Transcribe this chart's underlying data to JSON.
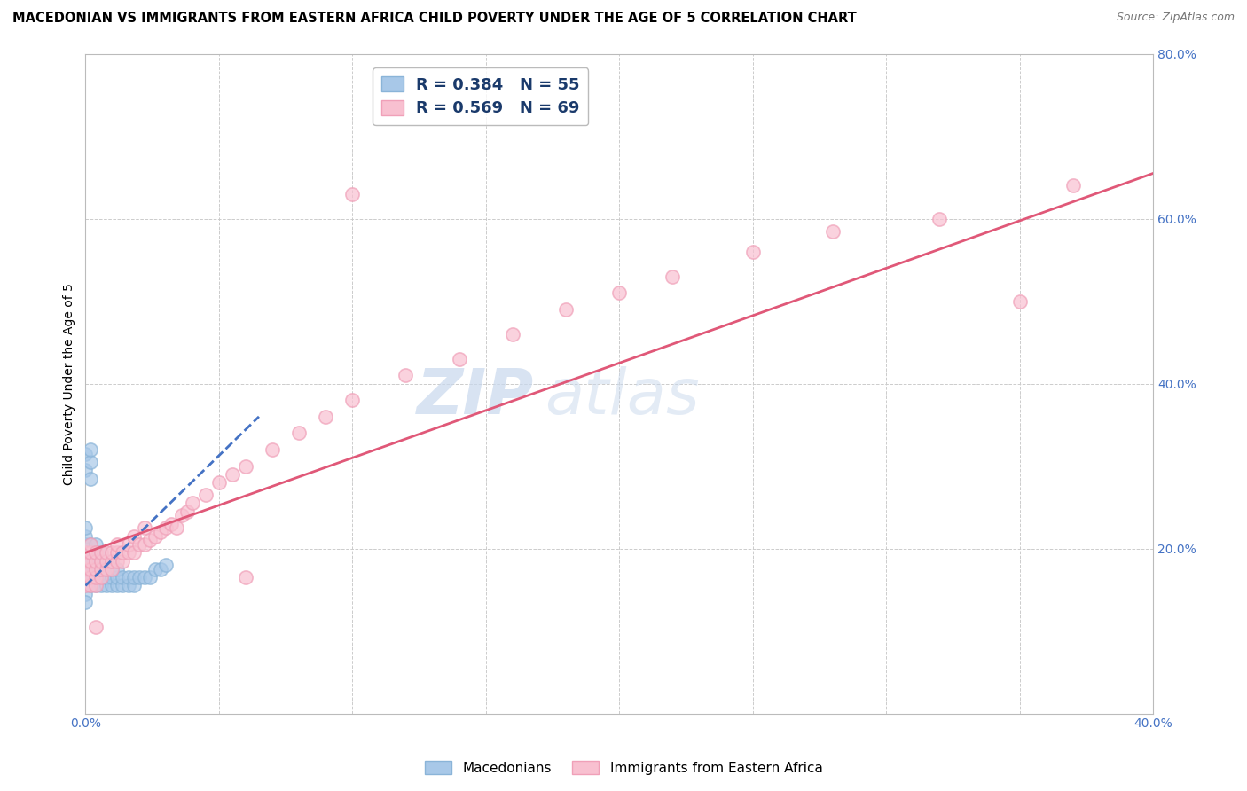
{
  "title": "MACEDONIAN VS IMMIGRANTS FROM EASTERN AFRICA CHILD POVERTY UNDER THE AGE OF 5 CORRELATION CHART",
  "source": "Source: ZipAtlas.com",
  "ylabel": "Child Poverty Under the Age of 5",
  "xlim": [
    0.0,
    0.4
  ],
  "ylim": [
    0.0,
    0.8
  ],
  "xticks": [
    0.0,
    0.05,
    0.1,
    0.15,
    0.2,
    0.25,
    0.3,
    0.35,
    0.4
  ],
  "yticks": [
    0.0,
    0.2,
    0.4,
    0.6,
    0.8
  ],
  "macedonian_color": "#8ab4d8",
  "macedonian_fill": "#a8c8e8",
  "eastern_africa_color": "#f0a0b8",
  "eastern_africa_fill": "#f8c0d0",
  "macedonian_line_color": "#4472c4",
  "eastern_africa_line_color": "#e05878",
  "macedonian_R": 0.384,
  "macedonian_N": 55,
  "eastern_africa_R": 0.569,
  "eastern_africa_N": 69,
  "watermark_zip": "ZIP",
  "watermark_atlas": "atlas",
  "legend_macedonians": "Macedonians",
  "legend_eastern_africa": "Immigrants from Eastern Africa",
  "background_color": "#ffffff",
  "grid_color": "#cccccc",
  "macedonian_points": [
    [
      0.0,
      0.155
    ],
    [
      0.0,
      0.165
    ],
    [
      0.0,
      0.175
    ],
    [
      0.0,
      0.185
    ],
    [
      0.0,
      0.195
    ],
    [
      0.0,
      0.205
    ],
    [
      0.0,
      0.215
    ],
    [
      0.0,
      0.225
    ],
    [
      0.0,
      0.145
    ],
    [
      0.0,
      0.135
    ],
    [
      0.002,
      0.155
    ],
    [
      0.002,
      0.165
    ],
    [
      0.002,
      0.175
    ],
    [
      0.002,
      0.185
    ],
    [
      0.002,
      0.195
    ],
    [
      0.002,
      0.205
    ],
    [
      0.004,
      0.155
    ],
    [
      0.004,
      0.165
    ],
    [
      0.004,
      0.175
    ],
    [
      0.004,
      0.185
    ],
    [
      0.004,
      0.195
    ],
    [
      0.004,
      0.205
    ],
    [
      0.006,
      0.155
    ],
    [
      0.006,
      0.165
    ],
    [
      0.006,
      0.175
    ],
    [
      0.006,
      0.185
    ],
    [
      0.006,
      0.195
    ],
    [
      0.008,
      0.155
    ],
    [
      0.008,
      0.165
    ],
    [
      0.008,
      0.175
    ],
    [
      0.008,
      0.185
    ],
    [
      0.01,
      0.155
    ],
    [
      0.01,
      0.165
    ],
    [
      0.01,
      0.175
    ],
    [
      0.01,
      0.185
    ],
    [
      0.012,
      0.155
    ],
    [
      0.012,
      0.165
    ],
    [
      0.012,
      0.175
    ],
    [
      0.014,
      0.155
    ],
    [
      0.014,
      0.165
    ],
    [
      0.016,
      0.155
    ],
    [
      0.016,
      0.165
    ],
    [
      0.018,
      0.155
    ],
    [
      0.018,
      0.165
    ],
    [
      0.02,
      0.165
    ],
    [
      0.022,
      0.165
    ],
    [
      0.024,
      0.165
    ],
    [
      0.026,
      0.175
    ],
    [
      0.028,
      0.175
    ],
    [
      0.03,
      0.18
    ],
    [
      0.0,
      0.295
    ],
    [
      0.0,
      0.315
    ],
    [
      0.002,
      0.305
    ],
    [
      0.002,
      0.285
    ],
    [
      0.002,
      0.32
    ]
  ],
  "eastern_africa_points": [
    [
      0.0,
      0.155
    ],
    [
      0.0,
      0.165
    ],
    [
      0.0,
      0.175
    ],
    [
      0.0,
      0.185
    ],
    [
      0.0,
      0.195
    ],
    [
      0.002,
      0.155
    ],
    [
      0.002,
      0.165
    ],
    [
      0.002,
      0.175
    ],
    [
      0.002,
      0.185
    ],
    [
      0.002,
      0.195
    ],
    [
      0.002,
      0.205
    ],
    [
      0.004,
      0.155
    ],
    [
      0.004,
      0.165
    ],
    [
      0.004,
      0.175
    ],
    [
      0.004,
      0.185
    ],
    [
      0.004,
      0.195
    ],
    [
      0.006,
      0.165
    ],
    [
      0.006,
      0.175
    ],
    [
      0.006,
      0.185
    ],
    [
      0.006,
      0.195
    ],
    [
      0.008,
      0.175
    ],
    [
      0.008,
      0.185
    ],
    [
      0.008,
      0.195
    ],
    [
      0.01,
      0.175
    ],
    [
      0.01,
      0.185
    ],
    [
      0.01,
      0.195
    ],
    [
      0.012,
      0.185
    ],
    [
      0.012,
      0.195
    ],
    [
      0.012,
      0.205
    ],
    [
      0.014,
      0.185
    ],
    [
      0.014,
      0.195
    ],
    [
      0.016,
      0.195
    ],
    [
      0.016,
      0.205
    ],
    [
      0.018,
      0.195
    ],
    [
      0.018,
      0.215
    ],
    [
      0.02,
      0.205
    ],
    [
      0.022,
      0.205
    ],
    [
      0.022,
      0.225
    ],
    [
      0.024,
      0.21
    ],
    [
      0.026,
      0.215
    ],
    [
      0.028,
      0.22
    ],
    [
      0.03,
      0.225
    ],
    [
      0.032,
      0.23
    ],
    [
      0.034,
      0.225
    ],
    [
      0.036,
      0.24
    ],
    [
      0.038,
      0.245
    ],
    [
      0.04,
      0.255
    ],
    [
      0.045,
      0.265
    ],
    [
      0.05,
      0.28
    ],
    [
      0.055,
      0.29
    ],
    [
      0.06,
      0.3
    ],
    [
      0.07,
      0.32
    ],
    [
      0.08,
      0.34
    ],
    [
      0.09,
      0.36
    ],
    [
      0.1,
      0.38
    ],
    [
      0.12,
      0.41
    ],
    [
      0.14,
      0.43
    ],
    [
      0.16,
      0.46
    ],
    [
      0.18,
      0.49
    ],
    [
      0.2,
      0.51
    ],
    [
      0.22,
      0.53
    ],
    [
      0.25,
      0.56
    ],
    [
      0.28,
      0.585
    ],
    [
      0.32,
      0.6
    ],
    [
      0.37,
      0.64
    ],
    [
      0.1,
      0.63
    ],
    [
      0.35,
      0.5
    ],
    [
      0.06,
      0.165
    ],
    [
      0.004,
      0.105
    ]
  ],
  "mac_trendline_x": [
    0.0,
    0.065
  ],
  "mac_trendline_y": [
    0.155,
    0.36
  ],
  "ea_trendline_x": [
    0.0,
    0.4
  ],
  "ea_trendline_y": [
    0.195,
    0.655
  ],
  "title_fontsize": 10.5,
  "source_fontsize": 9,
  "axis_label_fontsize": 10,
  "tick_fontsize": 10,
  "legend_fontsize": 12
}
